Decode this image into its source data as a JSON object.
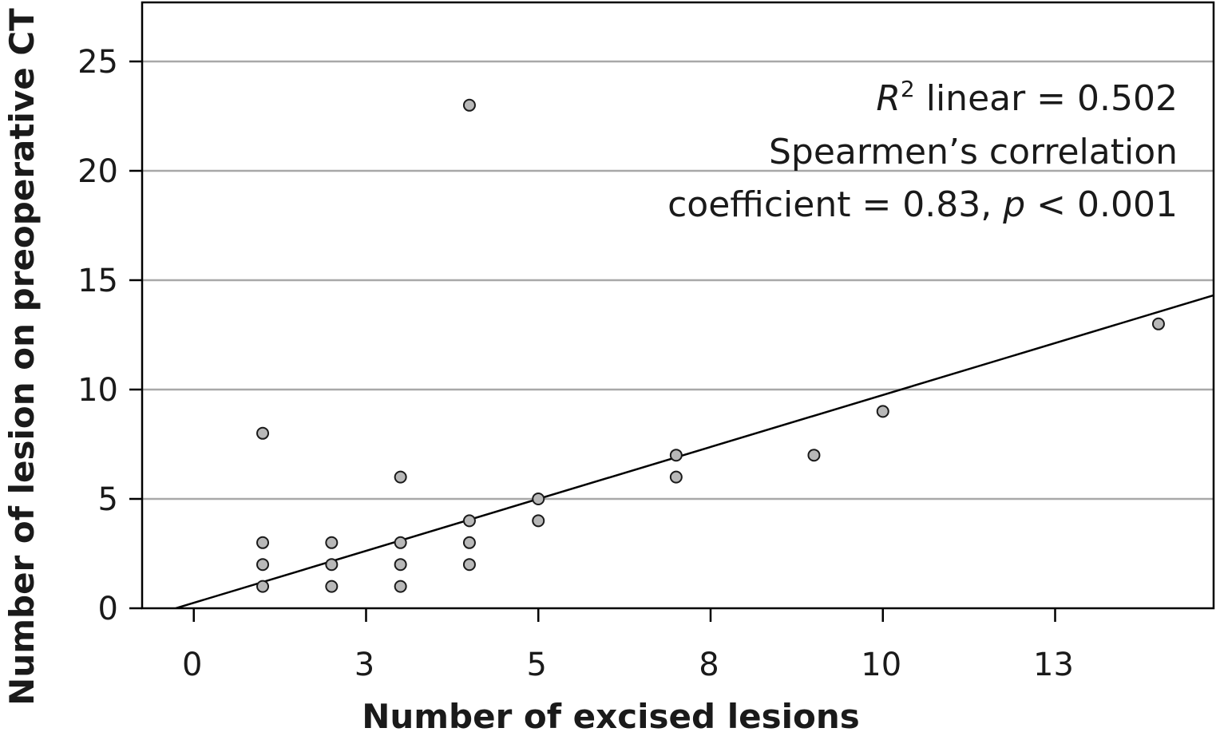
{
  "chart_data": {
    "type": "scatter",
    "title": "",
    "xlabel": "Number of excised lesions",
    "ylabel": "Number of lesion on preoperative CT",
    "x_ticks": [
      {
        "value": 0,
        "label": "0"
      },
      {
        "value": 2.5,
        "label": "3"
      },
      {
        "value": 5,
        "label": "5"
      },
      {
        "value": 7.5,
        "label": "8"
      },
      {
        "value": 10,
        "label": "10"
      },
      {
        "value": 12.5,
        "label": "13"
      }
    ],
    "y_ticks": [
      {
        "value": 0,
        "label": "0"
      },
      {
        "value": 5,
        "label": "5"
      },
      {
        "value": 10,
        "label": "10"
      },
      {
        "value": 15,
        "label": "15"
      },
      {
        "value": 20,
        "label": "20"
      },
      {
        "value": 25,
        "label": "25"
      }
    ],
    "xlim": [
      -0.75,
      14.8
    ],
    "ylim": [
      0,
      27.7
    ],
    "grid": "horizontal",
    "colors": {
      "point_fill": "#b8b8b8",
      "point_stroke": "#1a1a1a",
      "grid": "#a8a8a8",
      "line": "#000000"
    },
    "points": [
      {
        "x": 1,
        "y": 8
      },
      {
        "x": 1,
        "y": 3
      },
      {
        "x": 1,
        "y": 2
      },
      {
        "x": 1,
        "y": 1
      },
      {
        "x": 2,
        "y": 3
      },
      {
        "x": 2,
        "y": 2
      },
      {
        "x": 2,
        "y": 1
      },
      {
        "x": 3,
        "y": 6
      },
      {
        "x": 3,
        "y": 3
      },
      {
        "x": 3,
        "y": 2
      },
      {
        "x": 3,
        "y": 1
      },
      {
        "x": 4,
        "y": 23
      },
      {
        "x": 4,
        "y": 4
      },
      {
        "x": 4,
        "y": 3
      },
      {
        "x": 4,
        "y": 2
      },
      {
        "x": 5,
        "y": 5
      },
      {
        "x": 5,
        "y": 4
      },
      {
        "x": 7,
        "y": 7
      },
      {
        "x": 7,
        "y": 6
      },
      {
        "x": 9,
        "y": 7
      },
      {
        "x": 10,
        "y": 9
      },
      {
        "x": 14,
        "y": 13
      }
    ],
    "fit_line": {
      "slope": 0.95,
      "intercept": 0.25,
      "x_start": -0.26,
      "x_end": 14.8
    },
    "annotation": {
      "r2_symbol": "R",
      "r2_superscript": "2",
      "r2_text": " linear = 0.502",
      "spearman_line": "Spearmen’s correlation",
      "coef_text": "coefficient = 0.83, ",
      "p_symbol": "p",
      "p_text": " < 0.001"
    }
  }
}
